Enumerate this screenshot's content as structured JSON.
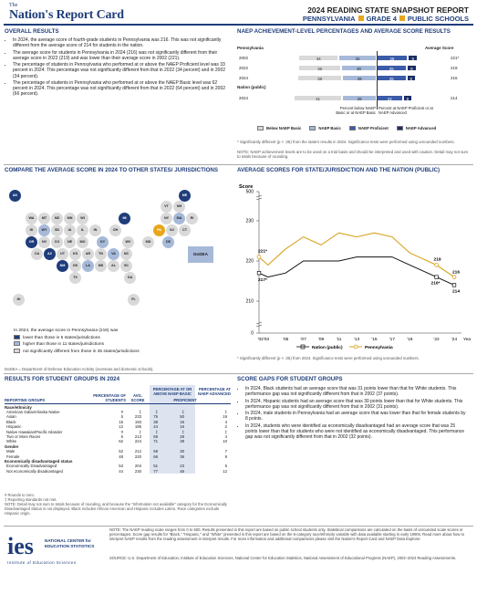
{
  "header": {
    "logo_small": "The",
    "logo": "Nation's Report Card",
    "title": "2024 READING STATE SNAPSHOT REPORT",
    "sub_state": "PENNSYLVANIA",
    "sub_grade": "GRADE 4",
    "sub_schools": "PUBLIC SCHOOLS"
  },
  "overall": {
    "heading": "OVERALL RESULTS",
    "bullets": [
      "In 2024, the average score of fourth-grade students in Pennsylvania was 216. This was not significantly different from the average score of 214 for students in the nation.",
      "The average score for students in Pennsylvania in 2024 (216) was not significantly different from their average score in 2022 (219) and was lower than their average score in 2002 (221).",
      "The percentage of students in Pennsylvania who performed at or above the NAEP Proficient level was 33 percent in 2024. This percentage was not significantly different from that in 2022 (34 percent) and in 2002 (34 percent).",
      "The percentage of students in Pennsylvania who performed at or above the NAEP Basic level was 62 percent in 2024. This percentage was not significantly different from that in 2022 (64 percent) and in 2002 (66 percent)."
    ]
  },
  "achievement": {
    "heading": "NAEP ACHIEVEMENT-LEVEL PERCENTAGES AND AVERAGE SCORE RESULTS",
    "state_label": "Pennsylvania",
    "avg_label": "Average Score",
    "nation_label": "Nation (public)",
    "rows": [
      {
        "year": "2002",
        "below": 34,
        "basic": 32,
        "prof": 26,
        "adv": 9,
        "score": "221*"
      },
      {
        "year": "2022",
        "below": 36,
        "basic": 30,
        "prof": 25,
        "adv": 9,
        "score": "219"
      },
      {
        "year": "2024",
        "below": 38,
        "basic": 29,
        "prof": 25,
        "adv": 8,
        "score": "216"
      },
      {
        "year": "2024",
        "below": 41,
        "basic": 29,
        "prof": 22,
        "adv": 8,
        "score": "214"
      }
    ],
    "left_note": "Percent below NAEP Basic or at NAEP Basic",
    "right_note": "Percent at NAEP Proficient or at NAEP Advanced",
    "legend": [
      "Below NAEP Basic",
      "NAEP Basic",
      "NAEP Proficient",
      "NAEP Advanced"
    ],
    "note1": "* Significantly different (p < .05) from the state's results in 2024. Significance tests were performed using unrounded numbers.",
    "note2": "NOTE: NAEP achievement levels are to be used on a trial basis and should be interpreted and used with caution. Detail may not sum to totals because of rounding.",
    "colors": {
      "below": "#d9d9d9",
      "basic": "#a6b9d9",
      "prof": "#3b5ba8",
      "adv": "#1b2d63"
    }
  },
  "compare": {
    "heading": "COMPARE THE AVERAGE SCORE IN 2024 TO OTHER STATES/ JURISDICTIONS",
    "intro": "In 2024, the average score in Pennsylvania (216) was",
    "legend": [
      "lower than those in 5 states/jurisdictions",
      "higher than those in 11 states/jurisdictions",
      "not significantly different from those in 35 states/jurisdictions"
    ],
    "dodea": "DoDEA",
    "footnote": "DoDEA = Department of Defense Education Activity (overseas and domestic schools)."
  },
  "trend": {
    "heading": "AVERAGE SCORES FOR STATE/JURISDICTION AND THE NATION (PUBLIC)",
    "ylabel": "Score",
    "legend_nation": "Nation (public)",
    "legend_state": "Pennsylvania",
    "note": "* Significantly different (p < .05) from 2024. Significance tests were performed using unrounded numbers."
  },
  "chart_data": {
    "type": "line",
    "x": [
      "'02",
      "'03",
      "'05",
      "'07",
      "'09",
      "'11",
      "'13",
      "'15",
      "'17",
      "'19",
      "'22",
      "'24"
    ],
    "series": [
      {
        "name": "Nation (public)",
        "values": [
          217,
          216,
          217,
          220,
          220,
          220,
          221,
          221,
          221,
          219,
          216,
          214
        ]
      },
      {
        "name": "Pennsylvania",
        "values": [
          221,
          219,
          223,
          226,
          224,
          227,
          226,
          227,
          226,
          222,
          219,
          216
        ]
      }
    ],
    "point_labels": {
      "nation_first": "217*",
      "state_first": "221*",
      "state_2022": "219",
      "state_2024": "216",
      "nation_2022": "216*",
      "nation_2024": "214"
    },
    "y_ticks": [
      "500",
      "230",
      "220",
      "210",
      "0"
    ],
    "x_ticks": [
      "'02'03",
      "'05",
      "'07",
      "'09",
      "'11",
      "'13",
      "'15",
      "'17",
      "'19",
      "'22",
      "'24"
    ],
    "xlabel": "Year"
  },
  "groups": {
    "heading": "RESULTS FOR STUDENT GROUPS IN 2024",
    "col_headers": [
      "REPORTING GROUPS",
      "PERCENTAGE OF STUDENTS",
      "AVG. SCORE",
      "PERCENTAGE AT OR ABOVE NAEP BASIC",
      "PROFICIENT",
      "PERCENTAGE AT NAEP ADVANCED"
    ],
    "sections": [
      {
        "title": "Race/ethnicity",
        "rows": [
          [
            "American Indian/Alaska Native",
            "#",
            "‡",
            "‡",
            "‡",
            "‡"
          ],
          [
            "Asian",
            "5",
            "233",
            "75",
            "50",
            "19"
          ],
          [
            "Black",
            "15",
            "193",
            "38",
            "16",
            "4"
          ],
          [
            "Hispanic",
            "12",
            "195",
            "44",
            "16",
            "2"
          ],
          [
            "Native Hawaiian/Pacific Islander",
            "#",
            "‡",
            "‡",
            "‡",
            "‡"
          ],
          [
            "Two or More Races",
            "6",
            "213",
            "59",
            "28",
            "4"
          ],
          [
            "White",
            "62",
            "224",
            "71",
            "39",
            "10"
          ]
        ]
      },
      {
        "title": "Gender",
        "rows": [
          [
            "Male",
            "52",
            "212",
            "59",
            "30",
            "7"
          ],
          [
            "Female",
            "48",
            "220",
            "66",
            "36",
            "9"
          ]
        ]
      },
      {
        "title": "Economically disadvantaged status",
        "rows": [
          [
            "Economically Disadvantaged",
            "53",
            "204",
            "51",
            "23",
            "5"
          ],
          [
            "Not economically disadvantaged",
            "44",
            "230",
            "77",
            "46",
            "12"
          ]
        ]
      }
    ],
    "notes": [
      "# Rounds to zero.",
      "‡ Reporting standards not met.",
      "NOTE: Detail may not sum to totals because of rounding, and because the \"Information not available\" category for the Economically Disadvantaged Status is not displayed. Black includes African American and Hispanic includes Latino. Race categories exclude Hispanic origin."
    ]
  },
  "gaps": {
    "heading": "SCORE GAPS FOR STUDENT GROUPS",
    "bullets": [
      "In 2024, Black students had an average score that was 31 points lower than that for White students. This performance gap was not significantly different from that in 2002 (37 points).",
      "In 2024, Hispanic students had an average score that was 30 points lower than that for White students. This performance gap was not significantly different from that in 2002 (31 points).",
      "In 2024, male students in Pennsylvania had an average score that was lower than that for female students by 8 points.",
      "In 2024, students who were identified as economically disadvantaged had an average score that was 25 points lower than that for students who were not identified as economically disadvantaged. This performance gap was not significantly different from that in 2002 (32 points)."
    ]
  },
  "footer": {
    "logo": "ies",
    "org1": "NATIONAL CENTER for",
    "org2": "EDUCATION STATISTICS",
    "org3": "Institute of Education Sciences",
    "note": "NOTE: The NAEP reading scale ranges from 0 to 500. Results presented in this report are based on public school students only. Statistical comparisons are calculated on the basis of unrounded scale scores or percentages. Score gap results for \"Black,\" \"Hispanic,\" and \"White\" presented in this report are based on the 6-category race/ethnicity variable with data available starting in early 1990s. Read more about how to interpret NAEP results from the reading assessment in interpret results. For more information and additional comparisons please visit the Nation's Report Card and NAEP Data Explorer.",
    "source": "SOURCE: U.S. Department of Education, Institute of Education Sciences, National Center for Education Statistics, National Assessment of Educational Progress (NAEP), 2002–2024 Reading Assessments."
  }
}
